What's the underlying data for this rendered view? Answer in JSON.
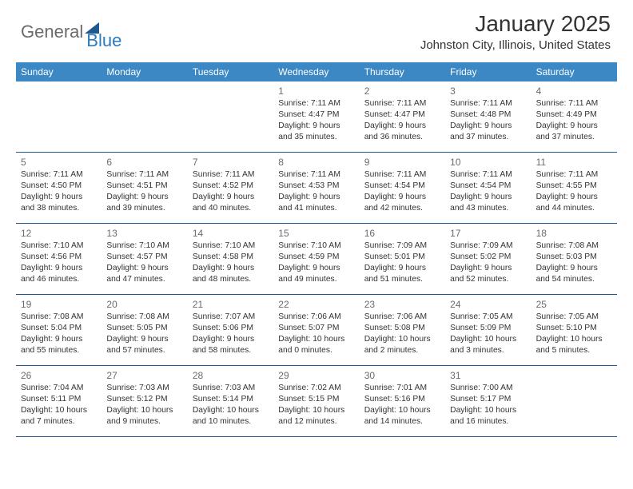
{
  "logo": {
    "part1": "General",
    "part2": "Blue"
  },
  "header": {
    "month": "January 2025",
    "location": "Johnston City, Illinois, United States"
  },
  "colors": {
    "weekday_bg": "#3b88c4",
    "weekday_fg": "#ffffff",
    "sep": "#1e5a8e",
    "text": "#333333",
    "daynum": "#6b6b6b",
    "logo_gray": "#6b6b6b",
    "logo_blue": "#2b7bbf"
  },
  "weekdays": [
    "Sunday",
    "Monday",
    "Tuesday",
    "Wednesday",
    "Thursday",
    "Friday",
    "Saturday"
  ],
  "cells": [
    {
      "day": "",
      "sunrise": "",
      "sunset": "",
      "daylight": ""
    },
    {
      "day": "",
      "sunrise": "",
      "sunset": "",
      "daylight": ""
    },
    {
      "day": "",
      "sunrise": "",
      "sunset": "",
      "daylight": ""
    },
    {
      "day": "1",
      "sunrise": "Sunrise: 7:11 AM",
      "sunset": "Sunset: 4:47 PM",
      "daylight": "Daylight: 9 hours and 35 minutes."
    },
    {
      "day": "2",
      "sunrise": "Sunrise: 7:11 AM",
      "sunset": "Sunset: 4:47 PM",
      "daylight": "Daylight: 9 hours and 36 minutes."
    },
    {
      "day": "3",
      "sunrise": "Sunrise: 7:11 AM",
      "sunset": "Sunset: 4:48 PM",
      "daylight": "Daylight: 9 hours and 37 minutes."
    },
    {
      "day": "4",
      "sunrise": "Sunrise: 7:11 AM",
      "sunset": "Sunset: 4:49 PM",
      "daylight": "Daylight: 9 hours and 37 minutes."
    },
    {
      "day": "5",
      "sunrise": "Sunrise: 7:11 AM",
      "sunset": "Sunset: 4:50 PM",
      "daylight": "Daylight: 9 hours and 38 minutes."
    },
    {
      "day": "6",
      "sunrise": "Sunrise: 7:11 AM",
      "sunset": "Sunset: 4:51 PM",
      "daylight": "Daylight: 9 hours and 39 minutes."
    },
    {
      "day": "7",
      "sunrise": "Sunrise: 7:11 AM",
      "sunset": "Sunset: 4:52 PM",
      "daylight": "Daylight: 9 hours and 40 minutes."
    },
    {
      "day": "8",
      "sunrise": "Sunrise: 7:11 AM",
      "sunset": "Sunset: 4:53 PM",
      "daylight": "Daylight: 9 hours and 41 minutes."
    },
    {
      "day": "9",
      "sunrise": "Sunrise: 7:11 AM",
      "sunset": "Sunset: 4:54 PM",
      "daylight": "Daylight: 9 hours and 42 minutes."
    },
    {
      "day": "10",
      "sunrise": "Sunrise: 7:11 AM",
      "sunset": "Sunset: 4:54 PM",
      "daylight": "Daylight: 9 hours and 43 minutes."
    },
    {
      "day": "11",
      "sunrise": "Sunrise: 7:11 AM",
      "sunset": "Sunset: 4:55 PM",
      "daylight": "Daylight: 9 hours and 44 minutes."
    },
    {
      "day": "12",
      "sunrise": "Sunrise: 7:10 AM",
      "sunset": "Sunset: 4:56 PM",
      "daylight": "Daylight: 9 hours and 46 minutes."
    },
    {
      "day": "13",
      "sunrise": "Sunrise: 7:10 AM",
      "sunset": "Sunset: 4:57 PM",
      "daylight": "Daylight: 9 hours and 47 minutes."
    },
    {
      "day": "14",
      "sunrise": "Sunrise: 7:10 AM",
      "sunset": "Sunset: 4:58 PM",
      "daylight": "Daylight: 9 hours and 48 minutes."
    },
    {
      "day": "15",
      "sunrise": "Sunrise: 7:10 AM",
      "sunset": "Sunset: 4:59 PM",
      "daylight": "Daylight: 9 hours and 49 minutes."
    },
    {
      "day": "16",
      "sunrise": "Sunrise: 7:09 AM",
      "sunset": "Sunset: 5:01 PM",
      "daylight": "Daylight: 9 hours and 51 minutes."
    },
    {
      "day": "17",
      "sunrise": "Sunrise: 7:09 AM",
      "sunset": "Sunset: 5:02 PM",
      "daylight": "Daylight: 9 hours and 52 minutes."
    },
    {
      "day": "18",
      "sunrise": "Sunrise: 7:08 AM",
      "sunset": "Sunset: 5:03 PM",
      "daylight": "Daylight: 9 hours and 54 minutes."
    },
    {
      "day": "19",
      "sunrise": "Sunrise: 7:08 AM",
      "sunset": "Sunset: 5:04 PM",
      "daylight": "Daylight: 9 hours and 55 minutes."
    },
    {
      "day": "20",
      "sunrise": "Sunrise: 7:08 AM",
      "sunset": "Sunset: 5:05 PM",
      "daylight": "Daylight: 9 hours and 57 minutes."
    },
    {
      "day": "21",
      "sunrise": "Sunrise: 7:07 AM",
      "sunset": "Sunset: 5:06 PM",
      "daylight": "Daylight: 9 hours and 58 minutes."
    },
    {
      "day": "22",
      "sunrise": "Sunrise: 7:06 AM",
      "sunset": "Sunset: 5:07 PM",
      "daylight": "Daylight: 10 hours and 0 minutes."
    },
    {
      "day": "23",
      "sunrise": "Sunrise: 7:06 AM",
      "sunset": "Sunset: 5:08 PM",
      "daylight": "Daylight: 10 hours and 2 minutes."
    },
    {
      "day": "24",
      "sunrise": "Sunrise: 7:05 AM",
      "sunset": "Sunset: 5:09 PM",
      "daylight": "Daylight: 10 hours and 3 minutes."
    },
    {
      "day": "25",
      "sunrise": "Sunrise: 7:05 AM",
      "sunset": "Sunset: 5:10 PM",
      "daylight": "Daylight: 10 hours and 5 minutes."
    },
    {
      "day": "26",
      "sunrise": "Sunrise: 7:04 AM",
      "sunset": "Sunset: 5:11 PM",
      "daylight": "Daylight: 10 hours and 7 minutes."
    },
    {
      "day": "27",
      "sunrise": "Sunrise: 7:03 AM",
      "sunset": "Sunset: 5:12 PM",
      "daylight": "Daylight: 10 hours and 9 minutes."
    },
    {
      "day": "28",
      "sunrise": "Sunrise: 7:03 AM",
      "sunset": "Sunset: 5:14 PM",
      "daylight": "Daylight: 10 hours and 10 minutes."
    },
    {
      "day": "29",
      "sunrise": "Sunrise: 7:02 AM",
      "sunset": "Sunset: 5:15 PM",
      "daylight": "Daylight: 10 hours and 12 minutes."
    },
    {
      "day": "30",
      "sunrise": "Sunrise: 7:01 AM",
      "sunset": "Sunset: 5:16 PM",
      "daylight": "Daylight: 10 hours and 14 minutes."
    },
    {
      "day": "31",
      "sunrise": "Sunrise: 7:00 AM",
      "sunset": "Sunset: 5:17 PM",
      "daylight": "Daylight: 10 hours and 16 minutes."
    },
    {
      "day": "",
      "sunrise": "",
      "sunset": "",
      "daylight": ""
    }
  ]
}
